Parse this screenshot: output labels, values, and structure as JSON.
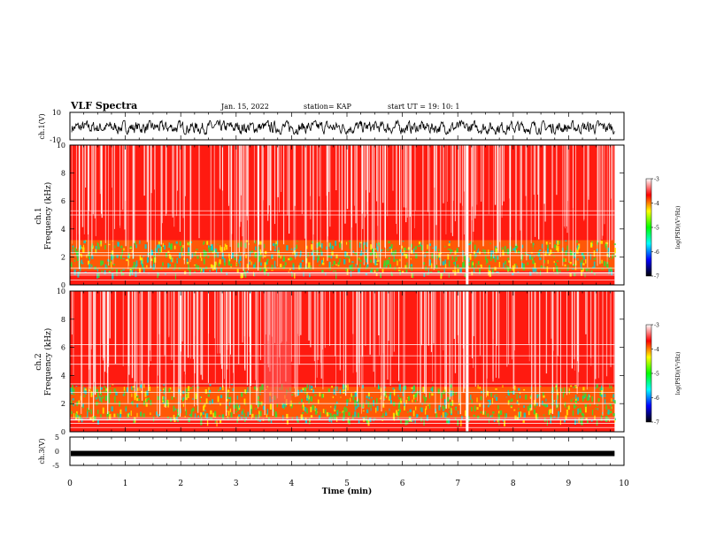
{
  "header": {
    "title": "VLF Spectra",
    "date": "Jan. 15, 2022",
    "station": "station= KAP",
    "start": "start UT =  19: 10: 1"
  },
  "colors": {
    "background": "#ffffff",
    "trace": "#000000",
    "colorscale": [
      "#ffffff",
      "#ff0000",
      "#ffff00",
      "#00ff00",
      "#00ffff",
      "#0000ff",
      "#000000"
    ]
  },
  "chart_data": [
    {
      "type": "line",
      "panel": "ch1-waveform",
      "ylabel": "ch.1(V)",
      "ylim": [
        -10,
        10
      ],
      "yticks": [
        "10",
        "-10"
      ],
      "x_range_min": [
        0,
        10
      ],
      "description_values": {
        "amplitude_range_V": [
          -5,
          5
        ]
      }
    },
    {
      "type": "heatmap",
      "panel": "ch1-spectrogram",
      "ylabel": [
        "ch.1",
        "Frequency (kHz)"
      ],
      "ylim_khz": [
        0,
        10
      ],
      "yticks": [
        "0",
        "2",
        "4",
        "6",
        "8",
        "10"
      ],
      "xlim_min": [
        0,
        10
      ],
      "data_end_min": 9.83,
      "strong_broadband_spike_min": 7.17,
      "colorbar": {
        "label": "log(PSD)(V²/Hz)",
        "range": [
          -7,
          -3
        ],
        "ticks": [
          "-3",
          "-4",
          "-5",
          "-6",
          "-7"
        ]
      }
    },
    {
      "type": "heatmap",
      "panel": "ch2-spectrogram",
      "ylabel": [
        "ch.2",
        "Frequency (kHz)"
      ],
      "ylim_khz": [
        0,
        10
      ],
      "yticks": [
        "0",
        "2",
        "4",
        "6",
        "8",
        "10"
      ],
      "xlim_min": [
        0,
        10
      ],
      "data_end_min": 9.83,
      "strong_broadband_spike_min": 7.17,
      "colorbar": {
        "label": "log(PSD)(V²/Hz)",
        "range": [
          -7,
          -3
        ],
        "ticks": [
          "-3",
          "-4",
          "-5",
          "-6",
          "-7"
        ]
      }
    },
    {
      "type": "line",
      "panel": "ch3-waveform",
      "ylabel": "ch.3(V)",
      "ylim": [
        -5,
        5
      ],
      "yticks": [
        "5",
        "0",
        "-5"
      ],
      "level_V": -0.8
    }
  ],
  "xaxis": {
    "label": "Time (min)",
    "ticks": [
      "0",
      "1",
      "2",
      "3",
      "4",
      "5",
      "6",
      "7",
      "8",
      "9",
      "10"
    ],
    "range": [
      0,
      10
    ]
  },
  "colorbar_label_text": "log(PSD)(V²/Hz)"
}
